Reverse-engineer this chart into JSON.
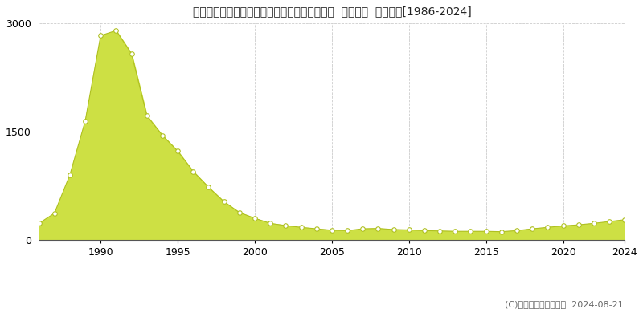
{
  "title": "北海道札幌市中央区南６条西４丁目５番３２外  地価公示  地価推移[1986-2024]",
  "years": [
    1986,
    1987,
    1988,
    1989,
    1990,
    1991,
    1992,
    1993,
    1994,
    1995,
    1996,
    1997,
    1998,
    1999,
    2000,
    2001,
    2002,
    2003,
    2004,
    2005,
    2006,
    2007,
    2008,
    2009,
    2010,
    2011,
    2012,
    2013,
    2014,
    2015,
    2016,
    2017,
    2018,
    2019,
    2020,
    2021,
    2022,
    2023,
    2024
  ],
  "values": [
    230,
    370,
    900,
    1650,
    2830,
    2900,
    2580,
    1720,
    1450,
    1230,
    950,
    730,
    530,
    380,
    300,
    230,
    200,
    175,
    155,
    135,
    130,
    155,
    160,
    145,
    140,
    130,
    125,
    120,
    120,
    120,
    115,
    130,
    155,
    175,
    195,
    210,
    230,
    255,
    280
  ],
  "fill_color": "#cde044",
  "line_color": "#afc020",
  "marker_facecolor": "#ffffff",
  "marker_edgecolor": "#afc020",
  "ylim": [
    0,
    3000
  ],
  "yticks": [
    0,
    1500,
    3000
  ],
  "xticks": [
    1990,
    1995,
    2000,
    2005,
    2010,
    2015,
    2020,
    2024
  ],
  "watermark": "(C)土地価格ドットコム  2024-08-21",
  "bg_color": "#ffffff",
  "grid_color": "#cccccc",
  "title_fontsize": 12,
  "tick_fontsize": 9,
  "legend_fontsize": 9,
  "watermark_fontsize": 8
}
